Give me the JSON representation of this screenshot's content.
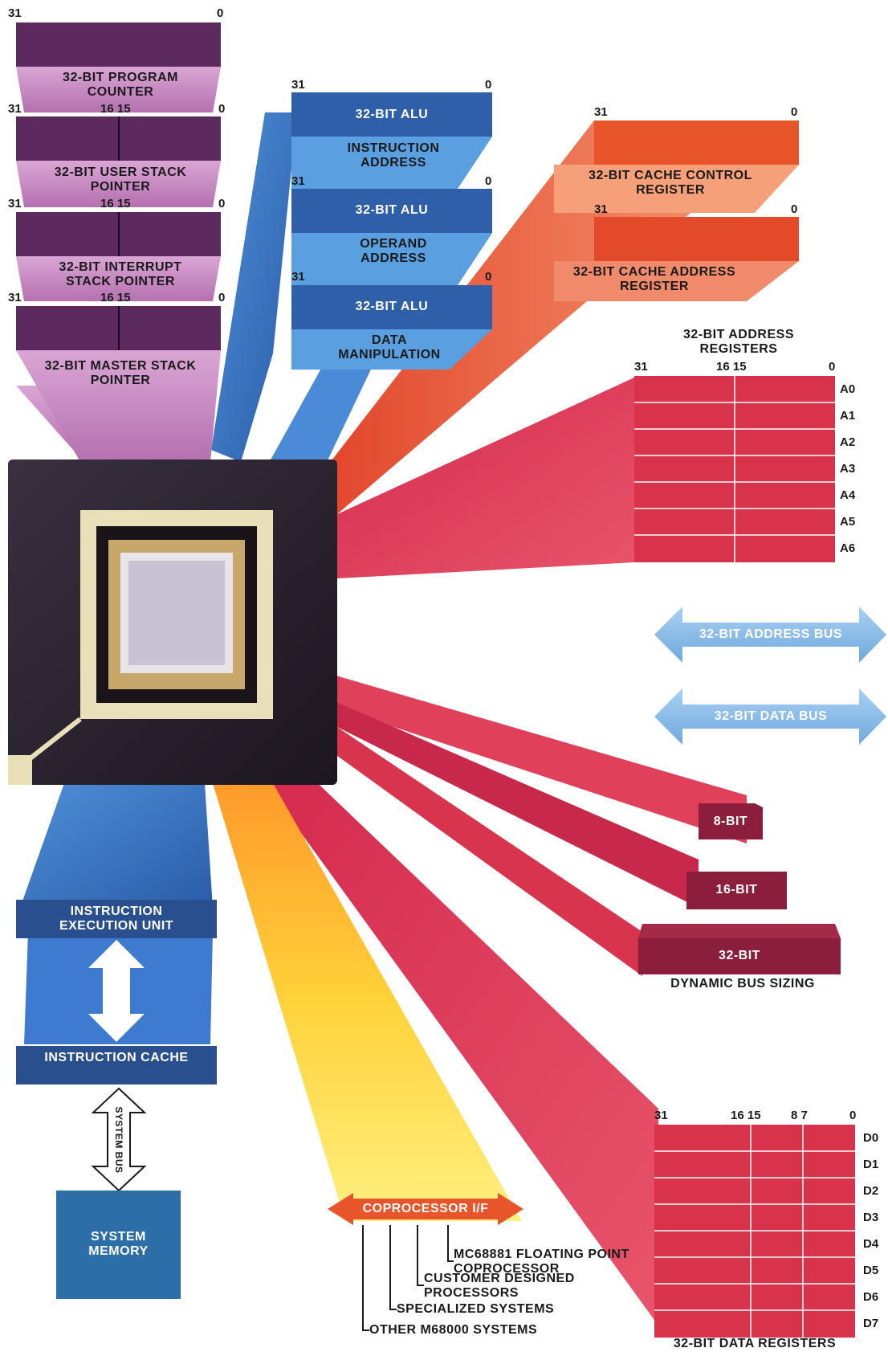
{
  "left_stack": {
    "program_counter": {
      "label": "32-BIT PROGRAM COUNTER",
      "msb": "31",
      "lsb": "0"
    },
    "user_stack": {
      "label": "32-BIT USER STACK POINTER",
      "msb": "31",
      "mid": "16 15",
      "lsb": "0"
    },
    "interrupt_stack": {
      "label": "32-BIT INTERRUPT STACK POINTER",
      "msb": "31",
      "mid": "16 15",
      "lsb": "0"
    },
    "master_stack": {
      "label": "32-BIT MASTER STACK POINTER",
      "msb": "31",
      "mid": "16 15",
      "lsb": "0"
    }
  },
  "alus": {
    "alu1": {
      "label": "32-BIT ALU",
      "sub": "INSTRUCTION ADDRESS",
      "msb": "31",
      "lsb": "0"
    },
    "alu2": {
      "label": "32-BIT ALU",
      "sub": "OPERAND ADDRESS",
      "msb": "31",
      "lsb": "0"
    },
    "alu3": {
      "label": "32-BIT ALU",
      "sub": "DATA MANIPULATION",
      "msb": "31",
      "lsb": "0"
    }
  },
  "cache_regs": {
    "control": {
      "label": "32-BIT CACHE CONTROL REGISTER",
      "msb": "31",
      "lsb": "0"
    },
    "address": {
      "label": "32-BIT CACHE ADDRESS REGISTER",
      "msb": "31",
      "lsb": "0"
    }
  },
  "address_registers": {
    "title": "32-BIT ADDRESS REGISTERS",
    "msb": "31",
    "mid": "16 15",
    "lsb": "0",
    "rows": [
      "A0",
      "A1",
      "A2",
      "A3",
      "A4",
      "A5",
      "A6"
    ]
  },
  "buses": {
    "address": "32-BIT ADDRESS BUS",
    "data": "32-BIT DATA BUS"
  },
  "bus_sizing": {
    "b8": "8-BIT",
    "b16": "16-BIT",
    "b32": "32-BIT",
    "caption": "DYNAMIC BUS SIZING"
  },
  "instruction_execution": "INSTRUCTION EXECUTION UNIT",
  "instruction_cache": "INSTRUCTION CACHE",
  "system_bus": "SYSTEM BUS",
  "system_memory": "SYSTEM MEMORY",
  "coprocessor": {
    "label": "COPROCESSOR I/F",
    "items": [
      "MC68881 FLOATING POINT COPROCESSOR",
      "CUSTOMER DESIGNED PROCESSORS",
      "SPECIALIZED SYSTEMS",
      "OTHER M68000 SYSTEMS"
    ]
  },
  "data_registers": {
    "title": "32-BIT DATA REGISTERS",
    "msb": "31",
    "mid": "16 15",
    "mid2": "8 7",
    "lsb": "0",
    "rows": [
      "D0",
      "D1",
      "D2",
      "D3",
      "D4",
      "D5",
      "D6",
      "D7"
    ]
  },
  "colors": {
    "purple": "#5c2a5e",
    "lilac": "#c98cc4",
    "blue": "#2f5fa8",
    "light_blue": "#5aa0e0",
    "orange": "#e8552a",
    "red": "#d8334a",
    "yellow": "#ffd23a",
    "dark_red": "#8a1e3c"
  }
}
